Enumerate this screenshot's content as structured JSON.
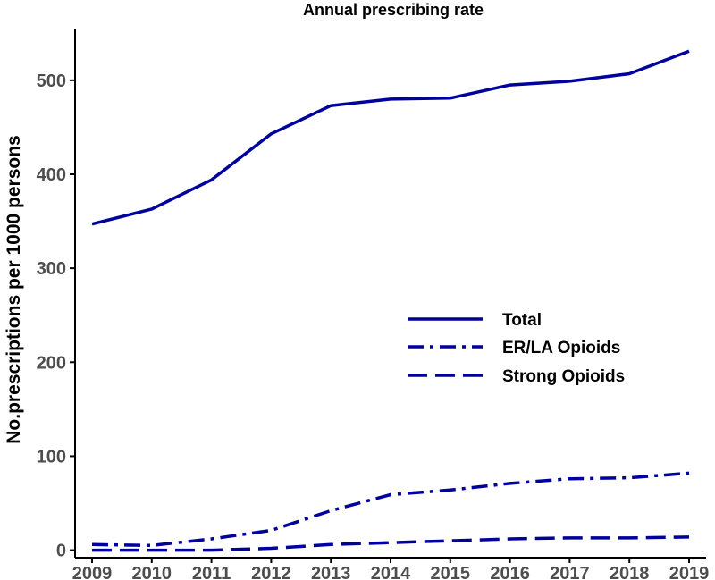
{
  "chart_data": {
    "type": "line",
    "title": "Annual prescribing rate",
    "xlabel": "",
    "ylabel": "No.prescriptions per 1000 persons",
    "x": [
      2009,
      2010,
      2011,
      2012,
      2013,
      2014,
      2015,
      2016,
      2017,
      2018,
      2019
    ],
    "xticks": [
      "2009",
      "2010",
      "2011",
      "2012",
      "2013",
      "2014",
      "2015",
      "2016",
      "2017",
      "2018",
      "2019"
    ],
    "yticks": [
      "0",
      "100",
      "200",
      "300",
      "400",
      "500"
    ],
    "ylim": [
      -8,
      555
    ],
    "grid": false,
    "legend_position": "right-center",
    "series": [
      {
        "name": "Total",
        "linestyle": "solid",
        "color": "#00009C",
        "values": [
          347,
          363,
          394,
          443,
          473,
          480,
          481,
          495,
          499,
          507,
          531
        ]
      },
      {
        "name": "ER/LA Opioids",
        "linestyle": "dashdot",
        "color": "#00009C",
        "values": [
          6,
          5,
          12,
          21,
          42,
          59,
          64,
          71,
          76,
          77,
          82
        ]
      },
      {
        "name": "Strong Opioids",
        "linestyle": "longdash",
        "color": "#00009C",
        "values": [
          0,
          0,
          0,
          2,
          6,
          8,
          10,
          12,
          13,
          13,
          14
        ]
      }
    ]
  }
}
